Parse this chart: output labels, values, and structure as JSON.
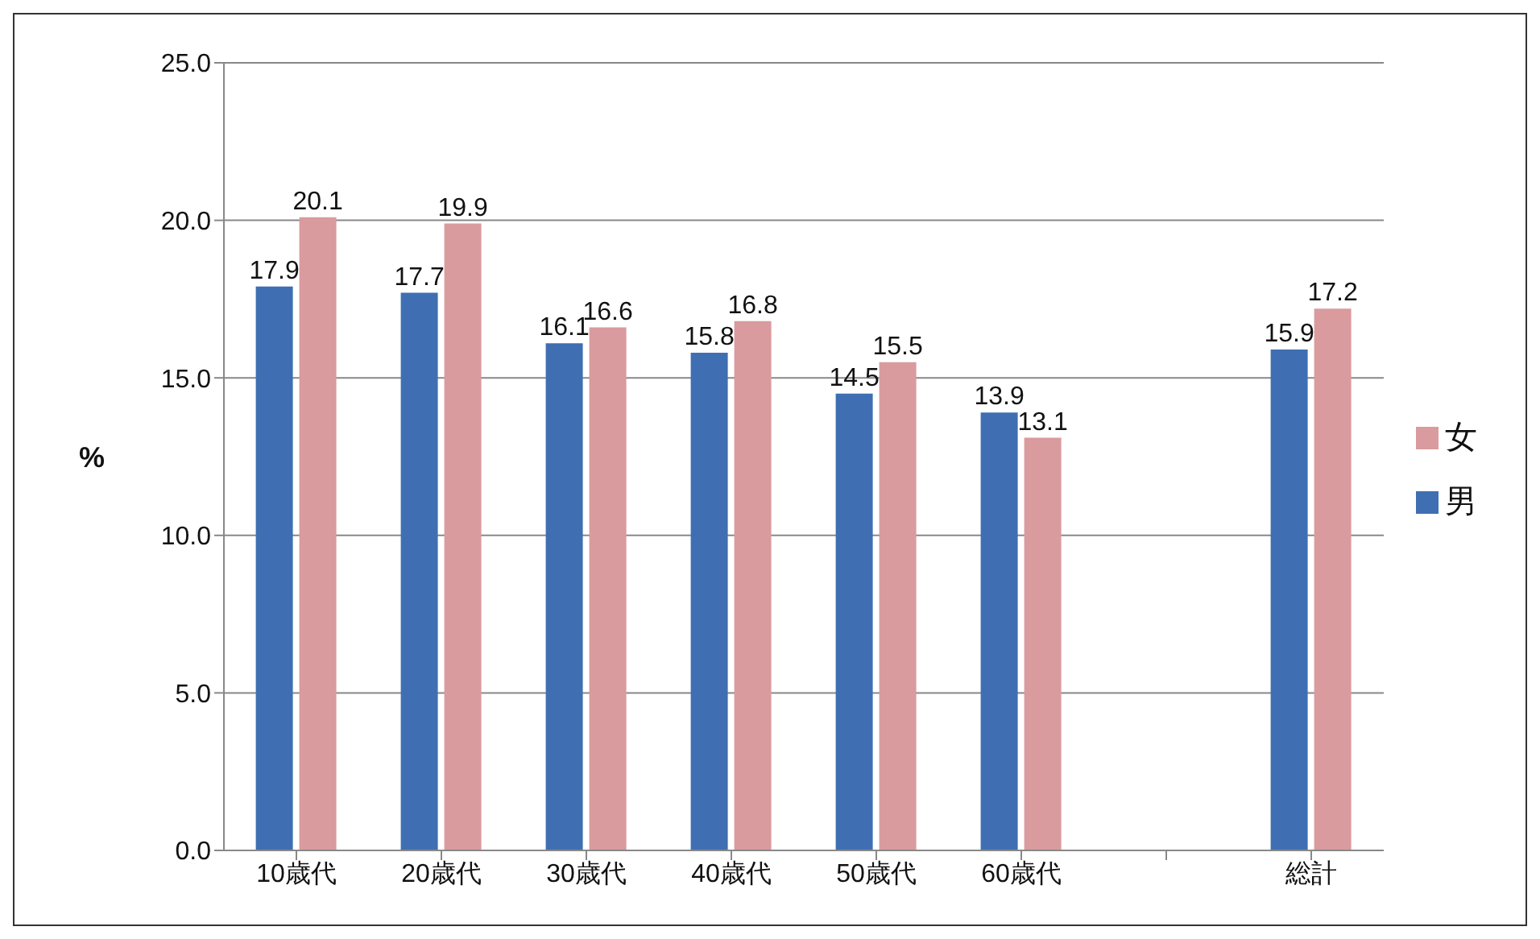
{
  "chart_data": {
    "type": "bar",
    "ylabel": "%",
    "categories": [
      "10歳代",
      "20歳代",
      "30歳代",
      "40歳代",
      "50歳代",
      "60歳代",
      null,
      "総計"
    ],
    "series": [
      {
        "name": "男",
        "color": "#3f6fb2",
        "values": [
          17.9,
          17.7,
          16.1,
          15.8,
          14.5,
          13.9,
          null,
          15.9
        ]
      },
      {
        "name": "女",
        "color": "#d99b9e",
        "values": [
          20.1,
          19.9,
          16.6,
          16.8,
          15.5,
          13.1,
          null,
          17.2
        ]
      }
    ],
    "ylim": [
      0,
      25
    ],
    "yticks": [
      {
        "value": 0,
        "label": "0.0"
      },
      {
        "value": 5,
        "label": "5.0"
      },
      {
        "value": 10,
        "label": "10.0"
      },
      {
        "value": 15,
        "label": "15.0"
      },
      {
        "value": 20,
        "label": "20.0"
      },
      {
        "value": 25,
        "label": "25.0"
      }
    ],
    "grid": "y",
    "legend": "right",
    "data_labels": true
  }
}
